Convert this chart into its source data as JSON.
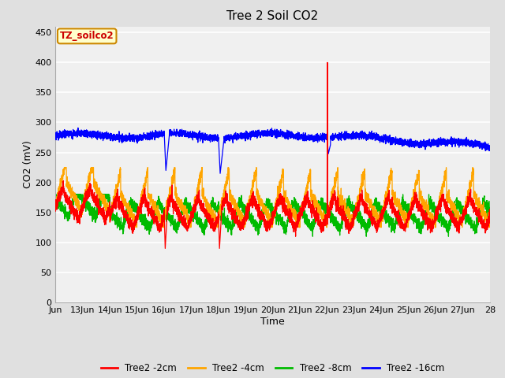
{
  "title": "Tree 2 Soil CO2",
  "xlabel": "Time",
  "ylabel": "CO2 (mV)",
  "ylim": [
    0,
    460
  ],
  "yticks": [
    0,
    50,
    100,
    150,
    200,
    250,
    300,
    350,
    400,
    450
  ],
  "legend_label": "TZ_soilco2",
  "series_labels": [
    "Tree2 -2cm",
    "Tree2 -4cm",
    "Tree2 -8cm",
    "Tree2 -16cm"
  ],
  "series_colors": [
    "#ff0000",
    "#ffa500",
    "#00bb00",
    "#0000ff"
  ],
  "fig_bg_color": "#e0e0e0",
  "plot_bg_color": "#f0f0f0",
  "grid_color": "#ffffff",
  "n_points": 5000,
  "x_tick_labels": [
    "Jun",
    "13Jun",
    "14Jun",
    "15Jun",
    "16Jun",
    "17Jun",
    "18Jun",
    "19Jun",
    "20Jun",
    "21Jun",
    "22Jun",
    "23Jun",
    "24Jun",
    "25Jun",
    "26Jun",
    "27Jun",
    "28"
  ]
}
